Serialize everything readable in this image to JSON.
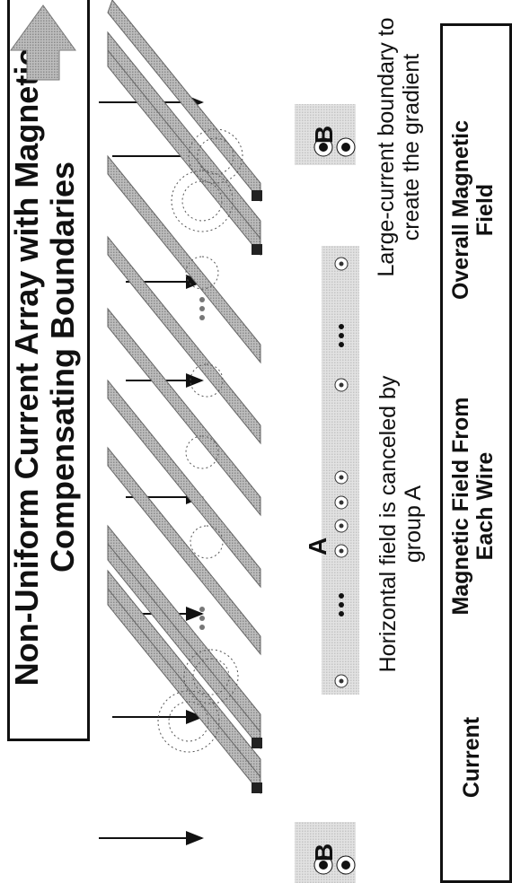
{
  "title": "Non-Uniform Current Array with Magnetic Compensating Boundaries",
  "groups": {
    "a_label": "A",
    "b_label": "B"
  },
  "notes": {
    "group_a": "Horizontal field is canceled by group A",
    "group_b": "Large-current boundary to create the gradient"
  },
  "legend": {
    "current": "Current",
    "wire_field": "Magnetic Field From Each Wire",
    "overall_field": "Overall Magnetic Field"
  },
  "colors": {
    "wire": "#8c8c8c",
    "shade": "#d6d6d6",
    "line": "#111111"
  }
}
